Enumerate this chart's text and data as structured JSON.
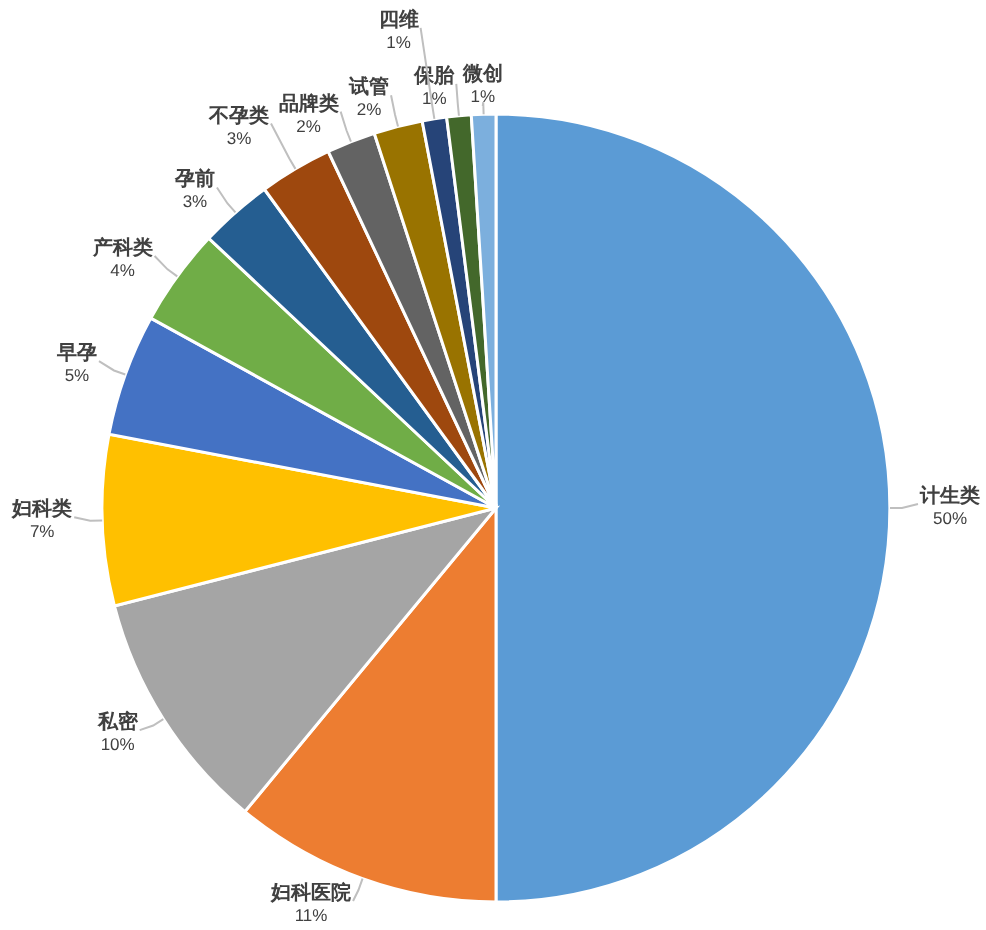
{
  "chart_data": {
    "type": "pie",
    "categories": [
      "计生类",
      "妇科医院",
      "私密",
      "妇科类",
      "早孕",
      "产科类",
      "孕前",
      "不孕类",
      "品牌类",
      "试管",
      "四维",
      "保胎",
      "微创"
    ],
    "values": [
      50,
      11,
      10,
      7,
      5,
      4,
      3,
      3,
      2,
      2,
      1,
      1,
      1
    ],
    "value_labels": [
      "50%",
      "11%",
      "10%",
      "7%",
      "5%",
      "4%",
      "3%",
      "3%",
      "2%",
      "2%",
      "1%",
      "1%",
      "1%"
    ],
    "colors": [
      "#5b9bd5",
      "#ed7d31",
      "#a5a5a5",
      "#ffc000",
      "#4472c4",
      "#70ad47",
      "#255e91",
      "#9e480e",
      "#636363",
      "#997300",
      "#264478",
      "#43682b",
      "#7cafdd"
    ],
    "legend": false
  }
}
